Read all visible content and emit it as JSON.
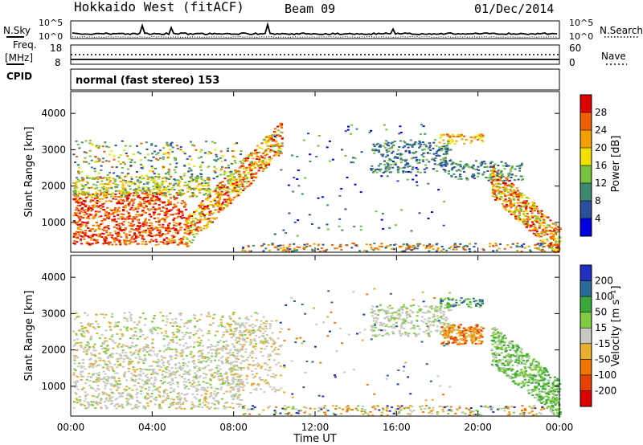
{
  "header": {
    "site": "Hokkaido West (fitACF)",
    "beam": "Beam 09",
    "date": "01/Dec/2014"
  },
  "noise_panel": {
    "left_label": "N.Sky",
    "right_label": "N.Search",
    "left_ticks": [
      "10^5",
      "10^0"
    ],
    "right_ticks": [
      "10^5",
      "10^0"
    ]
  },
  "freq_panel": {
    "left_label": "Freq.",
    "left_unit": "[MHz]",
    "right_label": "Nave",
    "left_ticks": [
      "18",
      "8"
    ],
    "right_ticks": [
      "60",
      "0"
    ]
  },
  "cpid": {
    "label": "CPID",
    "value": "normal (fast stereo) 153"
  },
  "chart_data": [
    {
      "type": "heatmap",
      "title": "",
      "xlabel": "",
      "ylabel": "Slant Range [km]",
      "xlim": [
        0,
        24
      ],
      "ylim": [
        180,
        4600
      ],
      "x_ticks": [],
      "y_ticks": [
        "1000",
        "2000",
        "3000",
        "4000"
      ],
      "y_tick_values": [
        1000,
        2000,
        3000,
        4000
      ],
      "colorbar": {
        "label": "Power [dB]",
        "ticks": [
          "4",
          "8",
          "12",
          "16",
          "20",
          "24",
          "28"
        ],
        "colors": [
          "#0000e0",
          "#2a4ea0",
          "#3c8a6e",
          "#78c040",
          "#f0e000",
          "#f5a000",
          "#f06000",
          "#e00000"
        ]
      }
    },
    {
      "type": "heatmap",
      "title": "",
      "xlabel": "Time UT",
      "ylabel": "Slant Range [km]",
      "xlim": [
        0,
        24
      ],
      "ylim": [
        180,
        4600
      ],
      "x_ticks": [
        "00:00",
        "04:00",
        "08:00",
        "12:00",
        "16:00",
        "20:00",
        "00:00"
      ],
      "y_ticks": [
        "1000",
        "2000",
        "3000",
        "4000"
      ],
      "y_tick_values": [
        1000,
        2000,
        3000,
        4000
      ],
      "colorbar": {
        "label": "Velocity [m s⁻¹]",
        "ticks": [
          "200",
          "100",
          "50",
          "15",
          "-15",
          "-50",
          "-100",
          "-200"
        ],
        "colors": [
          "#2030c0",
          "#2a6a9a",
          "#38a838",
          "#80cc40",
          "#c8c8c0",
          "#e8b030",
          "#f07800",
          "#e84000",
          "#e00000"
        ]
      }
    }
  ]
}
